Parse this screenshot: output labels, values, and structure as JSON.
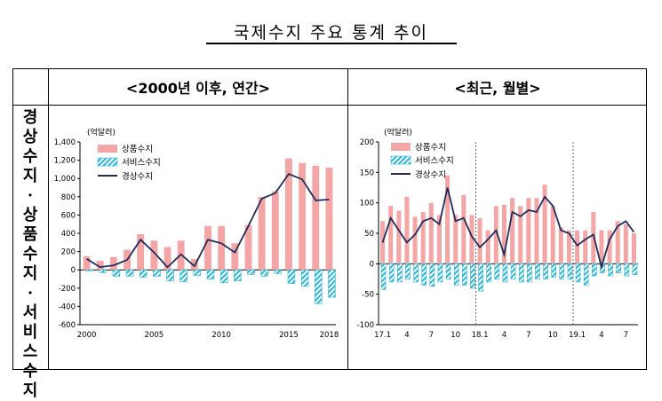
{
  "page": {
    "title": "국제수지 주요 통계 추이",
    "col_left": "<2000년 이후, 연간>",
    "col_right": "<최근, 월별>",
    "row_label": [
      "경",
      "상",
      "수",
      "지",
      "·",
      "상",
      "품",
      "수",
      "지",
      "·",
      "서",
      "비",
      "스",
      "수",
      "지"
    ]
  },
  "colors": {
    "goods": "#f4a6a6",
    "services": "#29b6d9",
    "current": "#1f2d5c"
  },
  "chart_data": [
    {
      "type": "bar",
      "unit": "(억달러)",
      "ylim": [
        -600,
        1400
      ],
      "yticks": [
        -600,
        -400,
        -200,
        0,
        200,
        400,
        600,
        800,
        1000,
        1200,
        1400
      ],
      "ytick_labels": [
        "-600",
        "-400",
        "-200",
        "0",
        "200",
        "400",
        "600",
        "800",
        "1,000",
        "1,200",
        "1,400"
      ],
      "x": [
        2000,
        2001,
        2002,
        2003,
        2004,
        2005,
        2006,
        2007,
        2008,
        2009,
        2010,
        2011,
        2012,
        2013,
        2014,
        2015,
        2016,
        2017,
        2018
      ],
      "xtick_labels": [
        "2000",
        "",
        "",
        "",
        "",
        "2005",
        "",
        "",
        "",
        "",
        "2010",
        "",
        "",
        "",
        "",
        "2015",
        "",
        "",
        "2018"
      ],
      "legend": [
        "상품수지",
        "서비스수지",
        "경상수지"
      ],
      "series": [
        {
          "name": "상품수지",
          "kind": "bar",
          "values": [
            150,
            100,
            140,
            220,
            390,
            320,
            250,
            320,
            120,
            480,
            480,
            290,
            490,
            800,
            860,
            1220,
            1170,
            1140,
            1120
          ]
        },
        {
          "name": "서비스수지",
          "kind": "bar",
          "values": [
            -10,
            -30,
            -70,
            -70,
            -80,
            -70,
            -120,
            -130,
            -60,
            -100,
            -140,
            -120,
            -50,
            -70,
            -40,
            -150,
            -180,
            -370,
            -300
          ]
        },
        {
          "name": "경상수지",
          "kind": "line",
          "values": [
            120,
            30,
            50,
            110,
            330,
            190,
            30,
            170,
            40,
            330,
            290,
            190,
            480,
            780,
            840,
            1050,
            990,
            760,
            770
          ]
        }
      ]
    },
    {
      "type": "bar",
      "unit": "(억달러)",
      "ylim": [
        -100,
        200
      ],
      "yticks": [
        -100,
        -50,
        0,
        50,
        100,
        150,
        200
      ],
      "ytick_labels": [
        "-100",
        "-50",
        "0",
        "50",
        "100",
        "150",
        "200"
      ],
      "x": [
        "17.1",
        "17.2",
        "17.3",
        "17.4",
        "17.5",
        "17.6",
        "17.7",
        "17.8",
        "17.9",
        "17.10",
        "17.11",
        "17.12",
        "18.1",
        "18.2",
        "18.3",
        "18.4",
        "18.5",
        "18.6",
        "18.7",
        "18.8",
        "18.9",
        "18.10",
        "18.11",
        "18.12",
        "19.1",
        "19.2",
        "19.3",
        "19.4",
        "19.5",
        "19.6",
        "19.7",
        "19.8"
      ],
      "xtick_labels": [
        "17.1",
        "",
        "",
        "4",
        "",
        "",
        "7",
        "",
        "",
        "10",
        "",
        "",
        "18.1",
        "",
        "",
        "4",
        "",
        "",
        "7",
        "",
        "",
        "10",
        "",
        "",
        "19.1",
        "",
        "",
        "4",
        "",
        "",
        "7",
        ""
      ],
      "dividers_after": [
        "17.12",
        "18.12"
      ],
      "legend": [
        "상품수지",
        "서비스수지",
        "경상수지"
      ],
      "series": [
        {
          "name": "상품수지",
          "kind": "bar",
          "values": [
            70,
            95,
            87,
            110,
            77,
            85,
            100,
            80,
            145,
            80,
            113,
            80,
            75,
            55,
            95,
            97,
            108,
            95,
            108,
            108,
            130,
            95,
            60,
            55,
            55,
            55,
            85,
            55,
            55,
            70,
            65,
            50
          ]
        },
        {
          "name": "서비스수지",
          "kind": "bar",
          "values": [
            -42,
            -30,
            -30,
            -25,
            -30,
            -35,
            -37,
            -30,
            -25,
            -35,
            -35,
            -40,
            -45,
            -30,
            -25,
            -30,
            -25,
            -30,
            -30,
            -25,
            -25,
            -22,
            -25,
            -25,
            -30,
            -35,
            -20,
            -15,
            -20,
            -15,
            -20,
            -18
          ]
        },
        {
          "name": "경상수지",
          "kind": "line",
          "values": [
            35,
            75,
            55,
            35,
            48,
            70,
            75,
            65,
            125,
            70,
            75,
            45,
            27,
            40,
            55,
            15,
            85,
            78,
            88,
            85,
            110,
            95,
            55,
            50,
            30,
            40,
            48,
            -5,
            40,
            62,
            70,
            52
          ]
        }
      ]
    }
  ]
}
